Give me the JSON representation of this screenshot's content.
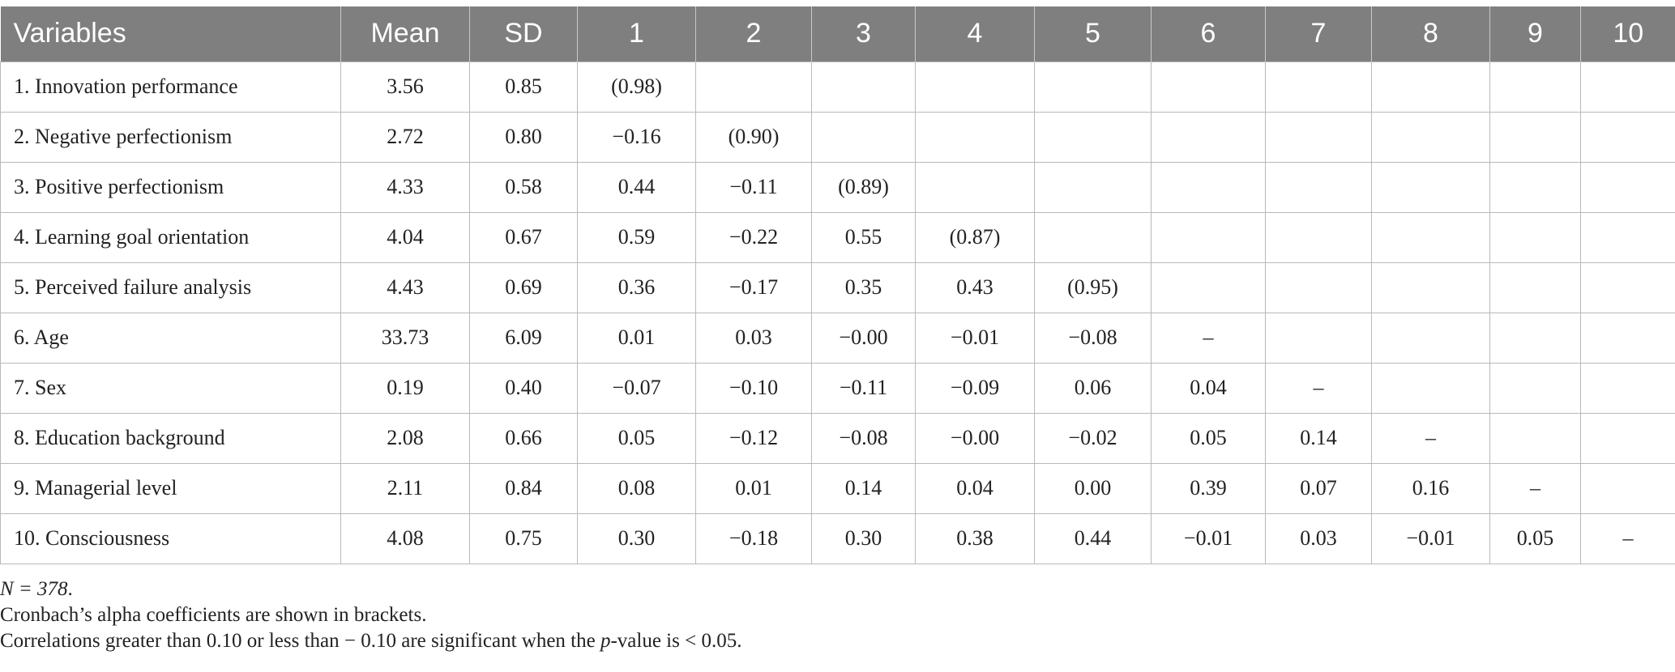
{
  "table": {
    "headers": [
      "Variables",
      "Mean",
      "SD",
      "1",
      "2",
      "3",
      "4",
      "5",
      "6",
      "7",
      "8",
      "9",
      "10"
    ],
    "rows": [
      [
        "1. Innovation performance",
        "3.56",
        "0.85",
        "(0.98)",
        "",
        "",
        "",
        "",
        "",
        "",
        "",
        "",
        ""
      ],
      [
        "2. Negative perfectionism",
        "2.72",
        "0.80",
        "−0.16",
        "(0.90)",
        "",
        "",
        "",
        "",
        "",
        "",
        "",
        ""
      ],
      [
        "3. Positive perfectionism",
        "4.33",
        "0.58",
        "0.44",
        "−0.11",
        "(0.89)",
        "",
        "",
        "",
        "",
        "",
        "",
        ""
      ],
      [
        "4. Learning goal orientation",
        "4.04",
        "0.67",
        "0.59",
        "−0.22",
        "0.55",
        "(0.87)",
        "",
        "",
        "",
        "",
        "",
        ""
      ],
      [
        "5. Perceived failure analysis",
        "4.43",
        "0.69",
        "0.36",
        "−0.17",
        "0.35",
        "0.43",
        "(0.95)",
        "",
        "",
        "",
        "",
        ""
      ],
      [
        "6. Age",
        "33.73",
        "6.09",
        "0.01",
        "0.03",
        "−0.00",
        "−0.01",
        "−0.08",
        "–",
        "",
        "",
        "",
        ""
      ],
      [
        "7. Sex",
        "0.19",
        "0.40",
        "−0.07",
        "−0.10",
        "−0.11",
        "−0.09",
        "0.06",
        "0.04",
        "–",
        "",
        "",
        ""
      ],
      [
        "8. Education background",
        "2.08",
        "0.66",
        "0.05",
        "−0.12",
        "−0.08",
        "−0.00",
        "−0.02",
        "0.05",
        "0.14",
        "–",
        "",
        ""
      ],
      [
        "9. Managerial level",
        "2.11",
        "0.84",
        "0.08",
        "0.01",
        "0.14",
        "0.04",
        "0.00",
        "0.39",
        "0.07",
        "0.16",
        "–",
        ""
      ],
      [
        "10. Consciousness",
        "4.08",
        "0.75",
        "0.30",
        "−0.18",
        "0.30",
        "0.38",
        "0.44",
        "−0.01",
        "0.03",
        "−0.01",
        "0.05",
        "–"
      ]
    ]
  },
  "notes": {
    "n_label": "N = 378",
    "n_suffix": ".",
    "alpha": "Cronbach’s alpha coefficients are shown in brackets.",
    "sig_before": "Correlations greater than 0.10 or less than − 0.10 are significant when the ",
    "sig_p": "p",
    "sig_after": "-value is < 0.05."
  }
}
